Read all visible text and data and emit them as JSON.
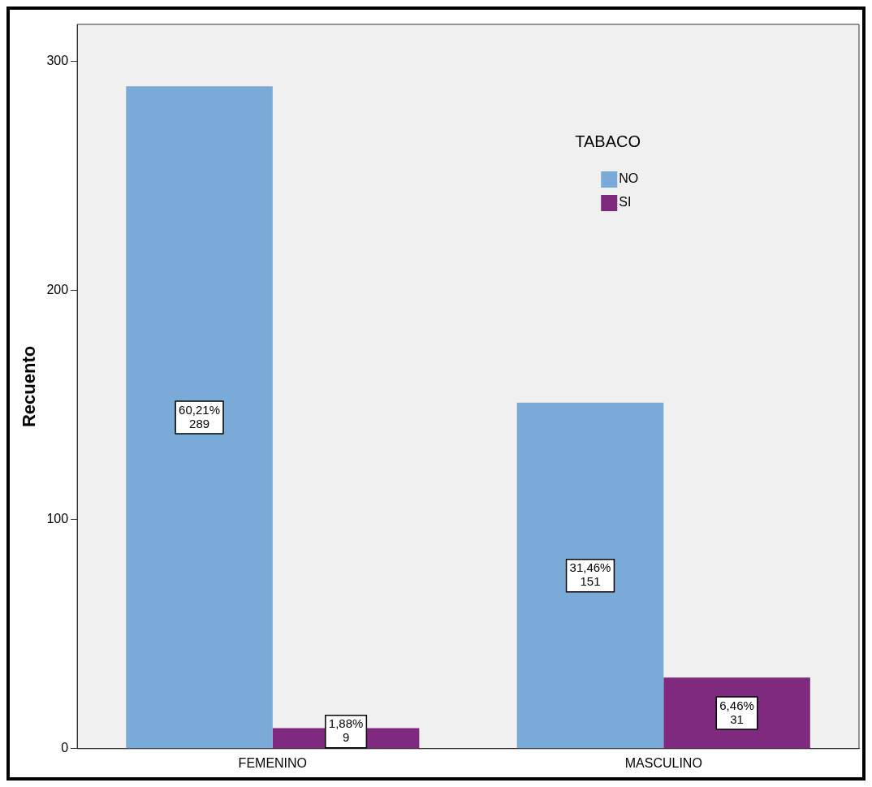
{
  "chart_data": {
    "type": "bar",
    "ylabel": "Recuento",
    "legend_title": "TABACO",
    "legend": "top right",
    "categories": [
      "FEMENINO",
      "MASCULINO"
    ],
    "series": [
      {
        "name": "NO",
        "color": "#7aaad8",
        "values": [
          289,
          151
        ],
        "value_labels": [
          "60,21%\n289",
          "31,46%\n151"
        ]
      },
      {
        "name": "SI",
        "color": "#7f2a7e",
        "values": [
          9,
          31
        ],
        "value_labels": [
          "1,88%\n9",
          "6,46%\n31"
        ]
      }
    ],
    "ylim": [
      0,
      316
    ],
    "yticks": [
      0,
      100,
      200,
      300
    ],
    "grid": false
  }
}
